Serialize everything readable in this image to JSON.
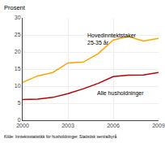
{
  "chart_data": {
    "type": "line",
    "x": [
      2000,
      2001,
      2002,
      2003,
      2004,
      2005,
      2006,
      2007,
      2008,
      2009
    ],
    "series": [
      {
        "color": "#FFA500",
        "values": [
          11.1,
          13.0,
          14.0,
          16.8,
          17.0,
          19.5,
          23.5,
          24.5,
          23.2,
          24.0
        ]
      },
      {
        "color": "#BB0000",
        "values": [
          6.1,
          6.2,
          6.7,
          7.8,
          9.2,
          10.8,
          12.8,
          13.2,
          13.3,
          14.0
        ]
      }
    ],
    "ylabel": "Prosent",
    "xlim": [
      2000,
      2009
    ],
    "xticks": [
      2000,
      2003,
      2006,
      2009
    ],
    "ylim": [
      0,
      30
    ],
    "yticks": [
      0,
      5,
      10,
      15,
      20,
      25,
      30
    ],
    "grid": true,
    "annotations": [
      {
        "text": "Hovedinntektstaker\n25-35 år",
        "x": 2004.2,
        "y": 21.5
      },
      {
        "text": "Alle husholdninger",
        "x": 2004.8,
        "y": 9.2
      }
    ],
    "source": "Kilde: Inntektsstatistikk for husholdninger, Statistisk sentralbyrå"
  }
}
